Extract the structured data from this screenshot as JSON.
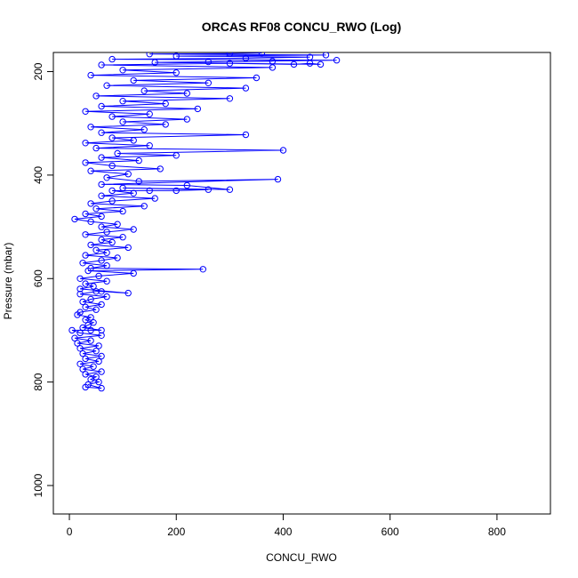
{
  "chart_data": {
    "type": "line",
    "title": "ORCAS RF08 CONCU_RWO (Log)",
    "xlabel": "CONCU_RWO",
    "ylabel": "Pressure (mbar)",
    "xlim": [
      -30,
      900
    ],
    "ylim": [
      1055,
      163
    ],
    "y_inverted": true,
    "x_ticks": [
      0,
      200,
      400,
      600,
      800
    ],
    "y_ticks": [
      200,
      400,
      600,
      800,
      1000
    ],
    "colors": {
      "series": "#0000ff",
      "axis": "#000000"
    },
    "marker": "open-circle",
    "series": [
      {
        "points": [
          [
            30,
            810
          ],
          [
            60,
            812
          ],
          [
            35,
            805
          ],
          [
            55,
            800
          ],
          [
            40,
            795
          ],
          [
            50,
            790
          ],
          [
            30,
            785
          ],
          [
            60,
            780
          ],
          [
            25,
            775
          ],
          [
            45,
            770
          ],
          [
            20,
            765
          ],
          [
            55,
            760
          ],
          [
            30,
            755
          ],
          [
            60,
            750
          ],
          [
            25,
            745
          ],
          [
            50,
            740
          ],
          [
            20,
            735
          ],
          [
            55,
            730
          ],
          [
            15,
            725
          ],
          [
            40,
            720
          ],
          [
            10,
            715
          ],
          [
            60,
            710
          ],
          [
            20,
            705
          ],
          [
            5,
            700
          ],
          [
            40,
            700
          ],
          [
            60,
            700
          ],
          [
            25,
            695
          ],
          [
            35,
            690
          ],
          [
            45,
            685
          ],
          [
            30,
            680
          ],
          [
            40,
            675
          ],
          [
            15,
            670
          ],
          [
            20,
            665
          ],
          [
            50,
            660
          ],
          [
            30,
            655
          ],
          [
            60,
            650
          ],
          [
            25,
            645
          ],
          [
            40,
            640
          ],
          [
            70,
            635
          ],
          [
            20,
            630
          ],
          [
            50,
            625
          ],
          [
            60,
            625
          ],
          [
            110,
            628
          ],
          [
            20,
            620
          ],
          [
            45,
            615
          ],
          [
            30,
            610
          ],
          [
            70,
            605
          ],
          [
            20,
            600
          ],
          [
            55,
            595
          ],
          [
            120,
            590
          ],
          [
            35,
            585
          ],
          [
            250,
            582
          ],
          [
            40,
            580
          ],
          [
            70,
            575
          ],
          [
            25,
            570
          ],
          [
            60,
            565
          ],
          [
            90,
            560
          ],
          [
            30,
            555
          ],
          [
            70,
            550
          ],
          [
            50,
            545
          ],
          [
            110,
            540
          ],
          [
            40,
            535
          ],
          [
            80,
            530
          ],
          [
            60,
            525
          ],
          [
            100,
            520
          ],
          [
            30,
            515
          ],
          [
            70,
            510
          ],
          [
            120,
            505
          ],
          [
            60,
            500
          ],
          [
            90,
            495
          ],
          [
            40,
            490
          ],
          [
            10,
            485
          ],
          [
            60,
            480
          ],
          [
            30,
            475
          ],
          [
            100,
            470
          ],
          [
            50,
            465
          ],
          [
            140,
            460
          ],
          [
            40,
            455
          ],
          [
            80,
            450
          ],
          [
            160,
            445
          ],
          [
            60,
            440
          ],
          [
            120,
            435
          ],
          [
            80,
            430
          ],
          [
            150,
            430
          ],
          [
            200,
            430
          ],
          [
            260,
            428
          ],
          [
            100,
            425
          ],
          [
            300,
            428
          ],
          [
            220,
            420
          ],
          [
            60,
            418
          ],
          [
            390,
            408
          ],
          [
            130,
            412
          ],
          [
            70,
            405
          ],
          [
            110,
            398
          ],
          [
            40,
            392
          ],
          [
            170,
            388
          ],
          [
            80,
            382
          ],
          [
            30,
            376
          ],
          [
            130,
            372
          ],
          [
            60,
            366
          ],
          [
            200,
            362
          ],
          [
            90,
            358
          ],
          [
            400,
            352
          ],
          [
            50,
            348
          ],
          [
            150,
            343
          ],
          [
            30,
            338
          ],
          [
            120,
            333
          ],
          [
            80,
            328
          ],
          [
            330,
            322
          ],
          [
            60,
            318
          ],
          [
            140,
            312
          ],
          [
            40,
            307
          ],
          [
            180,
            302
          ],
          [
            100,
            297
          ],
          [
            220,
            292
          ],
          [
            80,
            287
          ],
          [
            150,
            282
          ],
          [
            30,
            277
          ],
          [
            240,
            272
          ],
          [
            60,
            267
          ],
          [
            180,
            262
          ],
          [
            100,
            257
          ],
          [
            300,
            252
          ],
          [
            50,
            247
          ],
          [
            220,
            242
          ],
          [
            140,
            237
          ],
          [
            330,
            232
          ],
          [
            70,
            227
          ],
          [
            260,
            222
          ],
          [
            120,
            217
          ],
          [
            350,
            212
          ],
          [
            40,
            207
          ],
          [
            200,
            202
          ],
          [
            100,
            197
          ],
          [
            380,
            192
          ],
          [
            60,
            187
          ],
          [
            300,
            184
          ],
          [
            420,
            186
          ],
          [
            450,
            184
          ],
          [
            470,
            186
          ],
          [
            160,
            182
          ],
          [
            380,
            180
          ],
          [
            260,
            181
          ],
          [
            500,
            178
          ],
          [
            80,
            176
          ],
          [
            330,
            174
          ],
          [
            450,
            172
          ],
          [
            200,
            170
          ],
          [
            480,
            168
          ],
          [
            150,
            166
          ],
          [
            300,
            165
          ],
          [
            360,
            164
          ]
        ]
      }
    ]
  }
}
